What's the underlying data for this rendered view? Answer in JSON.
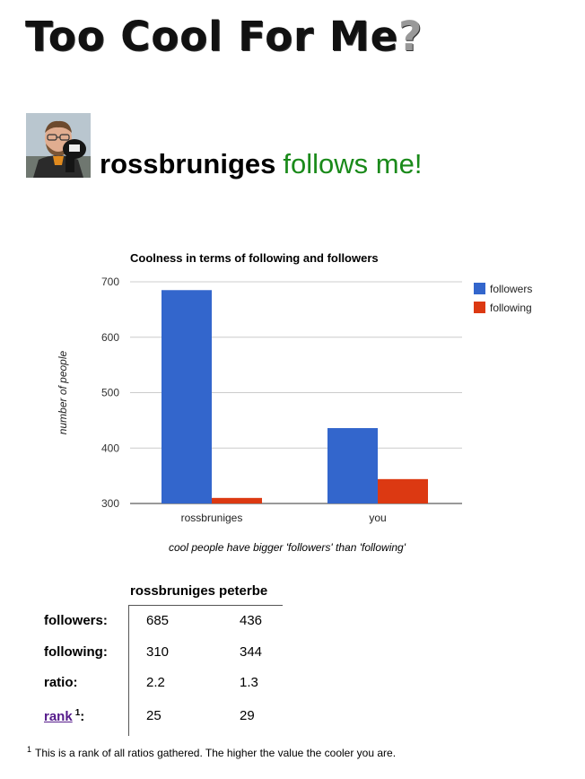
{
  "site": {
    "title": "Too Cool For Me",
    "title_mark": "?"
  },
  "profile": {
    "username": "rossbruniges",
    "verdict": "follows me!",
    "avatar_icon": "person-avatar-icon"
  },
  "chart_data": {
    "type": "bar",
    "title": "Coolness in terms of following and followers",
    "xlabel": "cool people have bigger 'followers' than 'following'",
    "ylabel": "number of people",
    "categories": [
      "rossbruniges",
      "you"
    ],
    "series": [
      {
        "name": "followers",
        "values": [
          685,
          436
        ],
        "color": "#3366cc"
      },
      {
        "name": "following",
        "values": [
          310,
          344
        ],
        "color": "#dc3912"
      }
    ],
    "yticks": [
      300,
      400,
      500,
      600,
      700
    ],
    "ylim": [
      300,
      700
    ],
    "grid": true,
    "legend": "right"
  },
  "stats": {
    "columns": [
      "rossbruniges",
      "peterbe"
    ],
    "rows": [
      {
        "label": "followers:",
        "values": [
          "685",
          "436"
        ]
      },
      {
        "label": "following:",
        "values": [
          "310",
          "344"
        ]
      },
      {
        "label": "ratio:",
        "values": [
          "2.2",
          "1.3"
        ]
      }
    ],
    "rank": {
      "label": "rank",
      "sup": "1",
      "suffix": ":",
      "values": [
        "25",
        "29"
      ]
    }
  },
  "footnote": {
    "marker": "1",
    "text": "This is a rank of all ratios gathered. The higher the value the cooler you are."
  }
}
